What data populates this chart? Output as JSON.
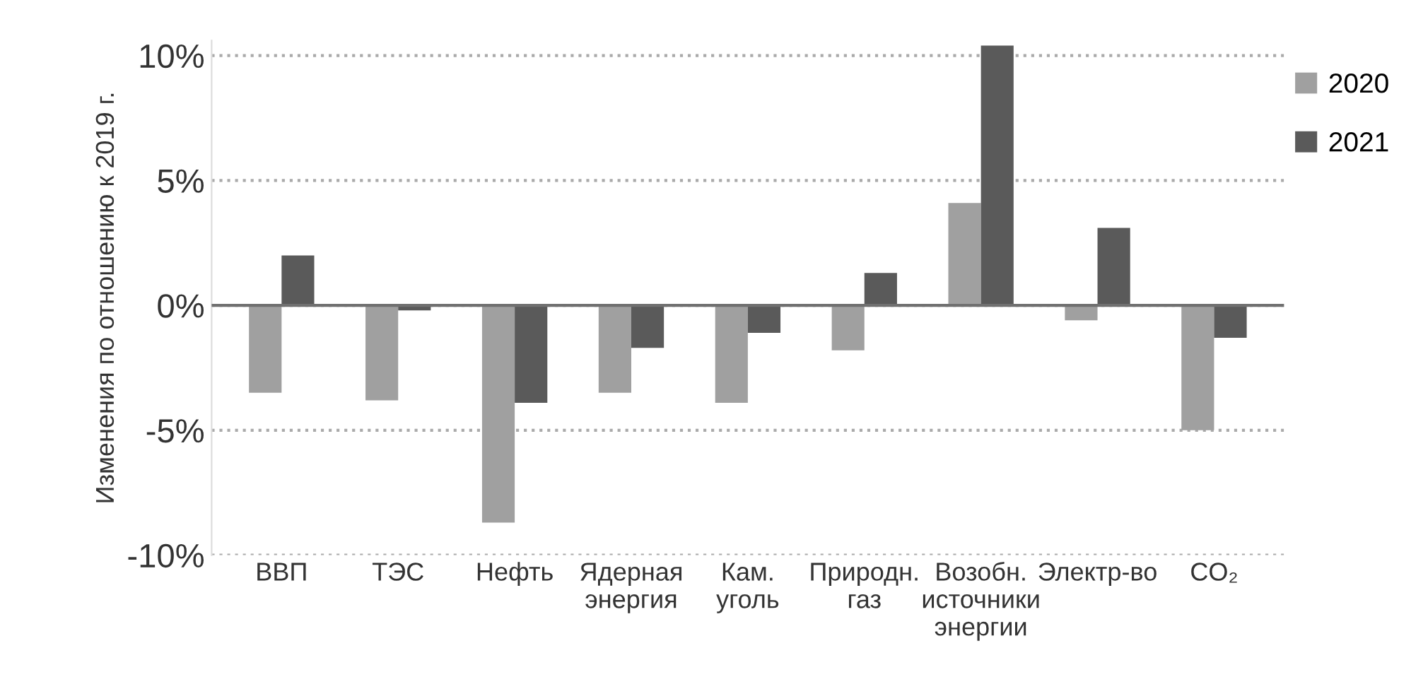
{
  "chart_data": {
    "type": "bar",
    "ylabel": "Изменения по отношению к 2019 г.",
    "categories": [
      "ВВП",
      "ТЭС",
      "Нефть",
      "Ядерная\nэнергия",
      "Кам.\nуголь",
      "Природн.\nгаз",
      "Возобн.\nисточники\nэнергии",
      "Электр-во",
      "CO₂"
    ],
    "series": [
      {
        "name": "2020",
        "color": "#a0a0a0",
        "values": [
          -3.5,
          -3.8,
          -8.7,
          -3.5,
          -3.9,
          -1.8,
          4.1,
          -0.6,
          -5.0
        ]
      },
      {
        "name": "2021",
        "color": "#5a5a5a",
        "values": [
          2.0,
          -0.2,
          -3.9,
          -1.7,
          -1.1,
          1.3,
          10.4,
          3.1,
          -1.3
        ]
      }
    ],
    "ylim": [
      -10,
      10.6
    ],
    "yticks": [
      {
        "value": -10,
        "label": "-10%"
      },
      {
        "value": -5,
        "label": "-5%"
      },
      {
        "value": 0,
        "label": "0%"
      },
      {
        "value": 5,
        "label": "5%"
      },
      {
        "value": 10,
        "label": "10%"
      }
    ],
    "ref_lines": [
      {
        "axis": "y",
        "value": 0,
        "label": null,
        "color": "#707070"
      }
    ],
    "grid": "y",
    "legend": "top right"
  }
}
